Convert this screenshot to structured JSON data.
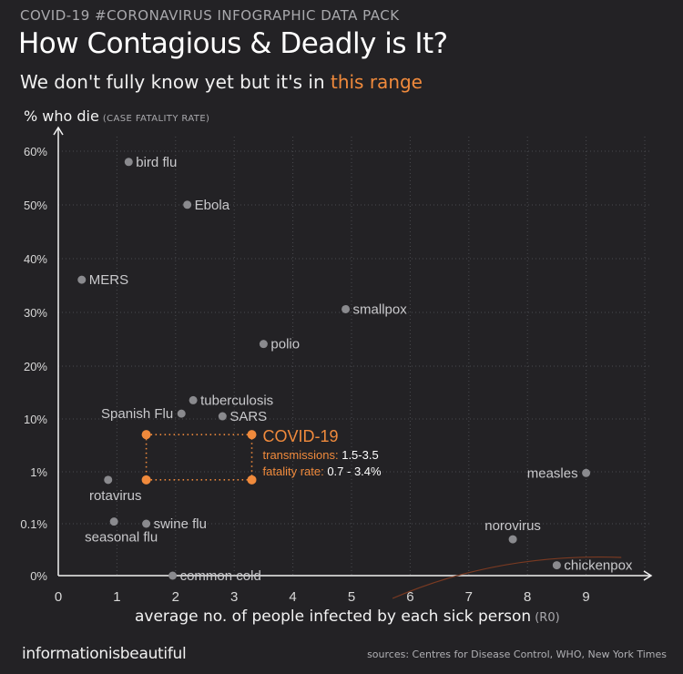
{
  "header": {
    "supertitle": "COVID-19 #CORONAVIRUS INFOGRAPHIC DATA PACK",
    "title": "How Contagious  & Deadly is It?",
    "subtitle_prefix": "We don't fully know yet but it's in ",
    "subtitle_highlight": "this range"
  },
  "footer": {
    "brand": "informationisbeautiful",
    "sources": "sources: Centres for Disease Control, WHO, New York Times"
  },
  "colors": {
    "background": "#232225",
    "point": "#8a8a8e",
    "label": "#c9c9cc",
    "accent": "#f08a3c",
    "curve": "#7a3a22"
  },
  "chart_data": {
    "type": "scatter",
    "ylabel": "% who die",
    "ylabel_note": "(CASE FATALITY RATE)",
    "xlabel": "average no. of people infected by each sick person",
    "xlabel_note": "(R0)",
    "x_ticks": [
      "0",
      "1",
      "2",
      "3",
      "4",
      "5",
      "6",
      "7",
      "8",
      "9"
    ],
    "y_ticks": [
      "0%",
      "0.1%",
      "1%",
      "10%",
      "20%",
      "30%",
      "40%",
      "50%",
      "60%"
    ],
    "y_scale": "piecewise",
    "grid": true,
    "points": [
      {
        "label": "bird flu",
        "x": 1.2,
        "y": 58,
        "label_side": "right"
      },
      {
        "label": "Ebola",
        "x": 2.2,
        "y": 50,
        "label_side": "right"
      },
      {
        "label": "MERS",
        "x": 0.4,
        "y": 36,
        "label_side": "right"
      },
      {
        "label": "smallpox",
        "x": 4.9,
        "y": 30.5,
        "label_side": "right"
      },
      {
        "label": "polio",
        "x": 3.5,
        "y": 24,
        "label_side": "right"
      },
      {
        "label": "tuberculosis",
        "x": 2.3,
        "y": 13.5,
        "label_side": "right"
      },
      {
        "label": "Spanish Flu",
        "x": 2.1,
        "y": 11,
        "label_side": "left"
      },
      {
        "label": "SARS",
        "x": 2.8,
        "y": 10.5,
        "label_side": "right"
      },
      {
        "label": "measles",
        "x": 9.0,
        "y": 0.95,
        "label_side": "left"
      },
      {
        "label": "rotavirus",
        "x": 0.85,
        "y": 0.7,
        "label_side": "below"
      },
      {
        "label": "swine flu",
        "x": 1.5,
        "y": 0.1,
        "label_side": "right"
      },
      {
        "label": "seasonal flu",
        "x": 0.95,
        "y": 0.11,
        "label_side": "below"
      },
      {
        "label": "norovirus",
        "x": 7.75,
        "y": 0.07,
        "label_side": "above"
      },
      {
        "label": "common cold",
        "x": 1.95,
        "y": 0.0,
        "label_side": "right"
      },
      {
        "label": "chickenpox",
        "x": 8.5,
        "y": 0.02,
        "label_side": "right"
      }
    ],
    "covid": {
      "label": "COVID-19",
      "transmissions_label": "transmissions:",
      "transmissions_value": "1.5-3.5",
      "fatality_label": "fatality rate:",
      "fatality_value": "0.7 - 3.4%",
      "x_range": [
        1.5,
        3.5
      ],
      "y_range": [
        0.7,
        3.4
      ]
    }
  }
}
